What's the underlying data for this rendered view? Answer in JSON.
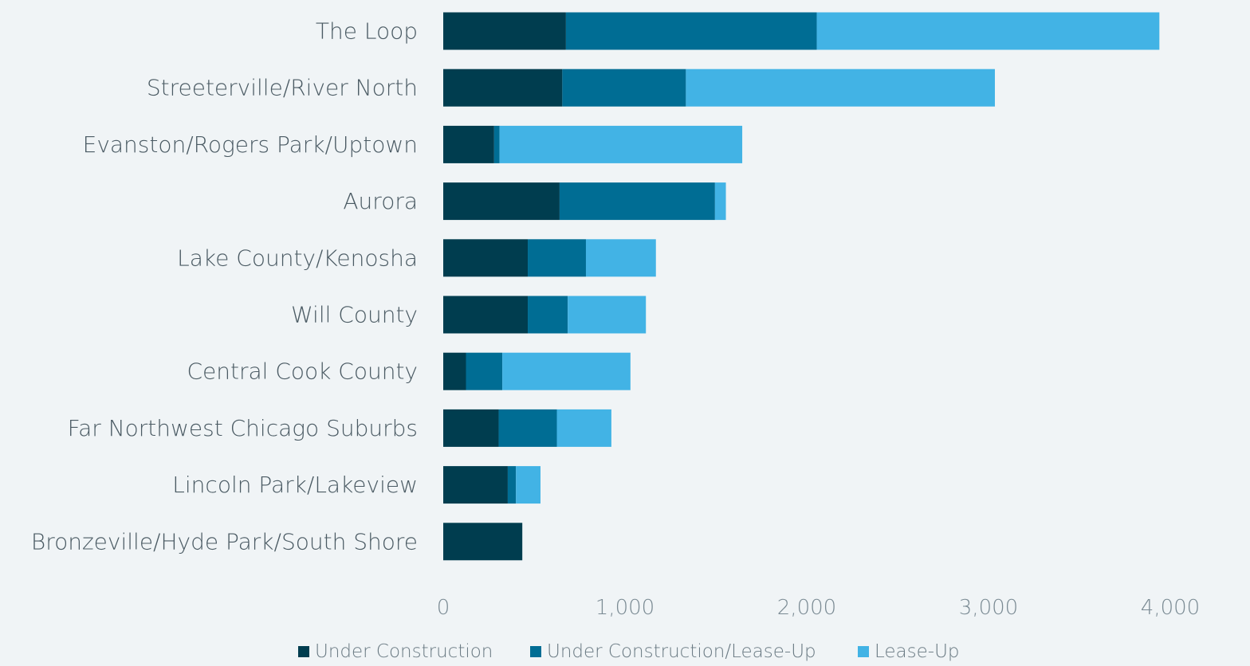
{
  "chart_data": {
    "type": "bar",
    "orientation": "horizontal",
    "stacked": true,
    "categories": [
      "The Loop",
      "Streeterville/River North",
      "Evanston/Rogers Park/Uptown",
      "Aurora",
      "Lake County/Kenosha",
      "Will County",
      "Central Cook County",
      "Far Northwest Chicago Suburbs",
      "Lincoln Park/Lakeview",
      "Bronzeville/Hyde Park/South Shore"
    ],
    "series": [
      {
        "name": "Under Construction",
        "color": "#003d4f",
        "values": [
          675,
          655,
          280,
          640,
          465,
          465,
          125,
          305,
          355,
          435
        ]
      },
      {
        "name": "Under Construction/Lease-Up",
        "color": "#006d94",
        "values": [
          1380,
          680,
          30,
          855,
          320,
          220,
          200,
          320,
          45,
          0
        ]
      },
      {
        "name": "Lease-Up",
        "color": "#42b3e5",
        "values": [
          1885,
          1700,
          1335,
          60,
          385,
          430,
          705,
          300,
          135,
          0
        ]
      }
    ],
    "xlim": [
      0,
      4000
    ],
    "xticks": [
      0,
      1000,
      2000,
      3000,
      4000
    ],
    "xtick_labels": [
      "0",
      "1,000",
      "2,000",
      "3,000",
      "4,000"
    ],
    "grid": false,
    "legend_position": "bottom",
    "title": "",
    "xlabel": "",
    "ylabel": ""
  }
}
